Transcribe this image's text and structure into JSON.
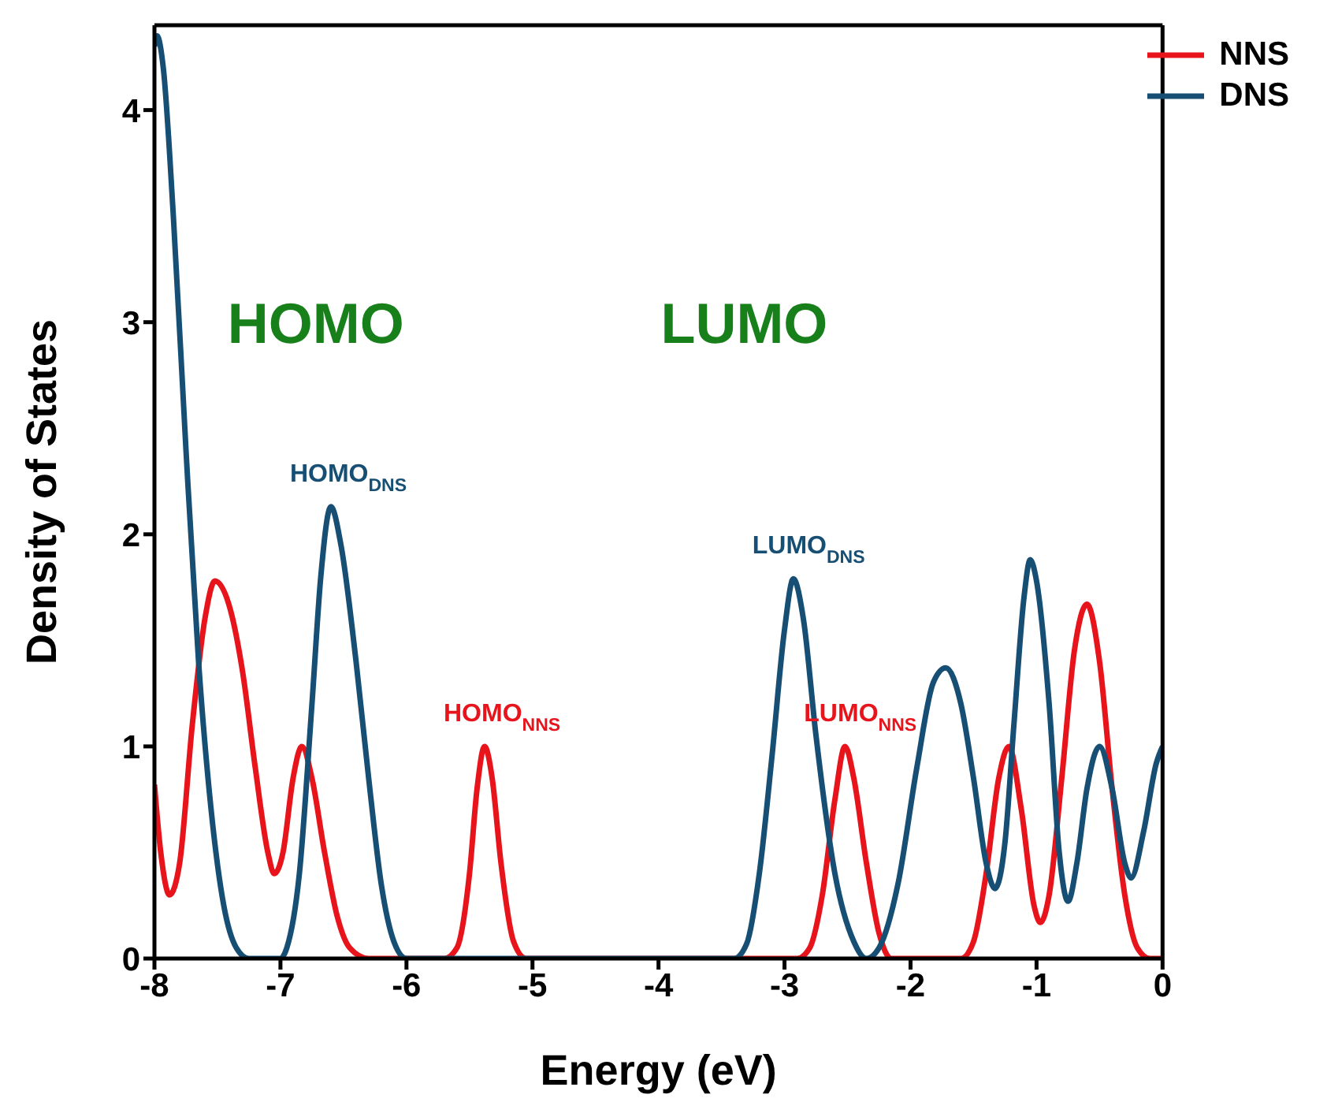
{
  "chart_data": {
    "type": "line",
    "xlabel": "Energy (eV)",
    "ylabel": "Density of States",
    "xlim": [
      -8,
      0
    ],
    "ylim": [
      0,
      4.4
    ],
    "xticks": [
      -8,
      -7,
      -6,
      -5,
      -4,
      -3,
      -2,
      -1,
      0
    ],
    "yticks": [
      0,
      1,
      2,
      3,
      4
    ],
    "legend": "top right",
    "marker": "none",
    "line_style": "solid",
    "series": [
      {
        "name": "NNS",
        "color": "#e8141c",
        "x": [
          -8,
          -7.95,
          -7.88,
          -7.8,
          -7.7,
          -7.6,
          -7.52,
          -7.4,
          -7.3,
          -7.2,
          -7.1,
          -7.05,
          -6.98,
          -6.9,
          -6.83,
          -6.75,
          -6.65,
          -6.55,
          -6.45,
          -6.3,
          -5.7,
          -5.6,
          -5.5,
          -5.44,
          -5.38,
          -5.32,
          -5.25,
          -5.15,
          -5.05,
          -2.9,
          -2.8,
          -2.7,
          -2.6,
          -2.52,
          -2.45,
          -2.35,
          -2.25,
          -2.15,
          -1.6,
          -1.5,
          -1.4,
          -1.3,
          -1.22,
          -1.12,
          -1.02,
          -0.97,
          -0.9,
          -0.8,
          -0.7,
          -0.6,
          -0.5,
          -0.4,
          -0.3,
          -0.2,
          -0.1,
          0
        ],
        "values": [
          0.82,
          0.5,
          0.3,
          0.45,
          1.1,
          1.6,
          1.78,
          1.65,
          1.35,
          0.9,
          0.5,
          0.4,
          0.5,
          0.85,
          1.0,
          0.85,
          0.5,
          0.2,
          0.05,
          0,
          0,
          0.05,
          0.4,
          0.8,
          1.0,
          0.85,
          0.45,
          0.08,
          0,
          0,
          0.05,
          0.3,
          0.75,
          1.0,
          0.85,
          0.45,
          0.12,
          0,
          0,
          0.08,
          0.4,
          0.85,
          1.0,
          0.7,
          0.25,
          0.17,
          0.3,
          0.85,
          1.45,
          1.67,
          1.4,
          0.8,
          0.3,
          0.05,
          0,
          0
        ]
      },
      {
        "name": "DNS",
        "color": "#174f74",
        "x": [
          -8,
          -7.98,
          -7.93,
          -7.85,
          -7.75,
          -7.65,
          -7.55,
          -7.45,
          -7.35,
          -7.25,
          -7,
          -6.95,
          -6.85,
          -6.75,
          -6.68,
          -6.6,
          -6.52,
          -6.4,
          -6.3,
          -6.2,
          -6.1,
          -6,
          -3.4,
          -3.3,
          -3.2,
          -3.1,
          -3,
          -2.93,
          -2.85,
          -2.75,
          -2.6,
          -2.45,
          -2.35,
          -2.25,
          -2.1,
          -1.95,
          -1.82,
          -1.72,
          -1.6,
          -1.5,
          -1.4,
          -1.33,
          -1.25,
          -1.18,
          -1.1,
          -1.05,
          -1,
          -0.9,
          -0.82,
          -0.75,
          -0.68,
          -0.6,
          -0.5,
          -0.4,
          -0.3,
          -0.25,
          -0.15,
          -0.05,
          0
        ],
        "values": [
          4.3,
          4.35,
          4.2,
          3.5,
          2.4,
          1.4,
          0.7,
          0.25,
          0.05,
          0,
          0,
          0.05,
          0.4,
          1.2,
          1.8,
          2.13,
          1.95,
          1.4,
          0.85,
          0.35,
          0.08,
          0,
          0,
          0.07,
          0.4,
          0.95,
          1.55,
          1.79,
          1.6,
          1.05,
          0.4,
          0.08,
          0,
          0.05,
          0.35,
          0.9,
          1.3,
          1.37,
          1.2,
          0.85,
          0.45,
          0.33,
          0.55,
          1.1,
          1.7,
          1.88,
          1.78,
          1.2,
          0.5,
          0.27,
          0.45,
          0.8,
          1.0,
          0.8,
          0.45,
          0.38,
          0.6,
          0.92,
          1.0
        ]
      }
    ],
    "annotations": [
      "HOMO",
      "LUMO",
      {
        "text": "HOMO$_{DNS}$",
        "x": -6.6,
        "y": 2.13
      },
      {
        "text": "HOMO$_{NNS}$",
        "x": -5.38,
        "y": 1.0
      },
      {
        "text": "LUMO$_{DNS}$",
        "x": -2.93,
        "y": 1.79
      },
      {
        "text": "LUMO$_{NNS}$",
        "x": -2.52,
        "y": 1.0
      }
    ]
  }
}
